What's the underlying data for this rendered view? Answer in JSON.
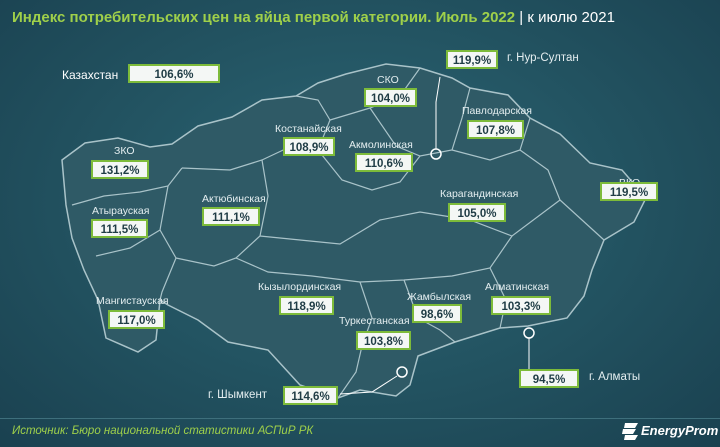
{
  "title": {
    "main": "Индекс потребительских цен на яйца первой категории. Июль 2022",
    "sub": "| к июлю 2021"
  },
  "national": {
    "label": "Казахстан",
    "value": "106,6%"
  },
  "regions": [
    {
      "id": "zko",
      "name": "ЗКО",
      "value": "131,2%"
    },
    {
      "id": "atyrau",
      "name": "Атырауская",
      "value": "111,5%"
    },
    {
      "id": "mangystau",
      "name": "Мангистауская",
      "value": "117,0%"
    },
    {
      "id": "aktobe",
      "name": "Актюбинская",
      "value": "111,1%"
    },
    {
      "id": "kostanay",
      "name": "Костанайская",
      "value": "108,9%"
    },
    {
      "id": "sko",
      "name": "СКО",
      "value": "104,0%"
    },
    {
      "id": "akmola",
      "name": "Акмолинская",
      "value": "110,6%"
    },
    {
      "id": "pavlodar",
      "name": "Павлодарская",
      "value": "107,8%"
    },
    {
      "id": "vko",
      "name": "ВКО",
      "value": "119,5%"
    },
    {
      "id": "karaganda",
      "name": "Карагандинская",
      "value": "105,0%"
    },
    {
      "id": "kyzylorda",
      "name": "Кызылординская",
      "value": "118,9%"
    },
    {
      "id": "zhambyl",
      "name": "Жамбылская",
      "value": "98,6%"
    },
    {
      "id": "turkestan",
      "name": "Туркестанская",
      "value": "103,8%"
    },
    {
      "id": "almaty",
      "name": "Алматинская",
      "value": "103,3%"
    }
  ],
  "cities": [
    {
      "id": "nur-sultan",
      "name": "г. Нур-Султан",
      "value": "119,9%"
    },
    {
      "id": "almaty-city",
      "name": "г. Алматы",
      "value": "94,5%"
    },
    {
      "id": "shymkent",
      "name": "г. Шымкент",
      "value": "114,6%"
    }
  ],
  "footer": {
    "source": "Источник: Бюро национальной статистики АСПиР РК",
    "brand": "EnergyProm"
  },
  "colors": {
    "background": "#225260",
    "map_fill": "#2f5a66",
    "border": "#a9c3c9",
    "accent_green": "#9fd04a",
    "box_border": "#7dbb3a"
  }
}
